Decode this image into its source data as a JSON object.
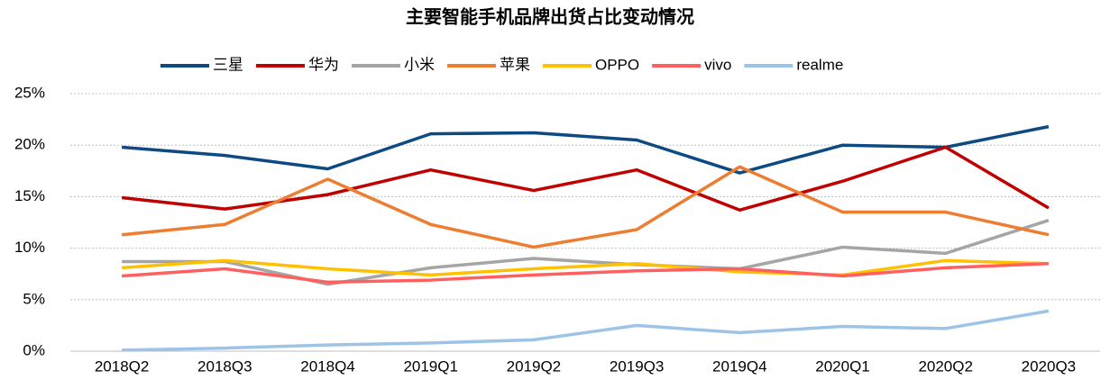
{
  "chart_data": {
    "type": "line",
    "title": "主要智能手机品牌出货占比变动情况",
    "categories": [
      "2018Q2",
      "2018Q3",
      "2018Q4",
      "2019Q1",
      "2019Q2",
      "2019Q3",
      "2019Q4",
      "2020Q1",
      "2020Q2",
      "2020Q3"
    ],
    "series": [
      {
        "name": "三星",
        "color": "#0e4a82",
        "values": [
          19.8,
          19.0,
          17.7,
          21.1,
          21.2,
          20.5,
          17.3,
          20.0,
          19.8,
          21.8
        ]
      },
      {
        "name": "华为",
        "color": "#c00000",
        "values": [
          14.9,
          13.8,
          15.2,
          17.6,
          15.6,
          17.6,
          13.7,
          16.5,
          19.8,
          13.9
        ]
      },
      {
        "name": "小米",
        "color": "#a5a5a5",
        "values": [
          8.7,
          8.7,
          6.5,
          8.1,
          9.0,
          8.4,
          8.0,
          10.1,
          9.5,
          12.7
        ]
      },
      {
        "name": "苹果",
        "color": "#ed7d31",
        "values": [
          11.3,
          12.3,
          16.7,
          12.3,
          10.1,
          11.8,
          17.9,
          13.5,
          13.5,
          11.3
        ]
      },
      {
        "name": "OPPO",
        "color": "#ffc000",
        "values": [
          8.1,
          8.8,
          8.0,
          7.4,
          8.0,
          8.5,
          7.7,
          7.4,
          8.8,
          8.5
        ]
      },
      {
        "name": "vivo",
        "color": "#ff5f5f",
        "values": [
          7.3,
          8.0,
          6.7,
          6.9,
          7.4,
          7.8,
          8.0,
          7.3,
          8.1,
          8.5
        ]
      },
      {
        "name": "realme",
        "color": "#9dc3e6",
        "values": [
          0.1,
          0.3,
          0.6,
          0.8,
          1.1,
          2.5,
          1.8,
          2.4,
          2.2,
          3.9
        ]
      }
    ],
    "ylim": [
      0,
      25
    ],
    "yticks": [
      {
        "value": 0,
        "label": "0%"
      },
      {
        "value": 5,
        "label": "5%"
      },
      {
        "value": 10,
        "label": "10%"
      },
      {
        "value": 15,
        "label": "15%"
      },
      {
        "value": 20,
        "label": "20%"
      },
      {
        "value": 25,
        "label": "25%"
      }
    ],
    "grid": true,
    "legend": "top"
  }
}
